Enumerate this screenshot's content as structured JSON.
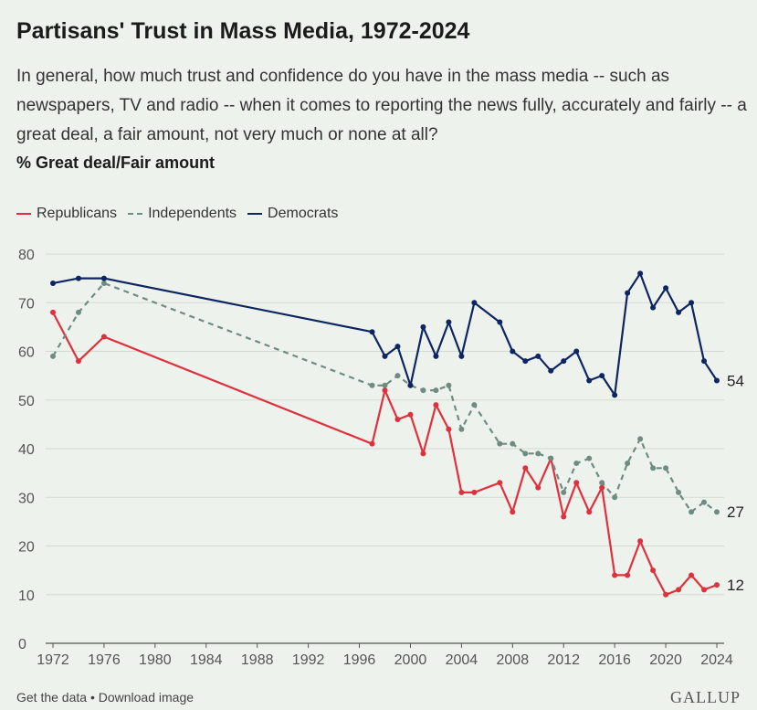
{
  "title": "Partisans' Trust in Mass Media, 1972-2024",
  "subtitle": "In general, how much trust and confidence do you have in the mass media -- such as newspapers, TV and radio -- when it comes to reporting the news fully, accurately and fairly -- a great deal, a fair amount, not very much or none at all?",
  "unit_label": "% Great deal/Fair amount",
  "footer": {
    "links": "Get the data • Download image",
    "brand": "GALLUP"
  },
  "chart_data": {
    "type": "line",
    "xlim": [
      1972,
      2024
    ],
    "ylim": [
      0,
      80
    ],
    "x_ticks": [
      1972,
      1976,
      1980,
      1984,
      1988,
      1992,
      1996,
      2000,
      2004,
      2008,
      2012,
      2016,
      2020,
      2024
    ],
    "y_ticks": [
      0,
      10,
      20,
      30,
      40,
      50,
      60,
      70,
      80
    ],
    "grid": true,
    "legend_position": "top-left",
    "series": [
      {
        "name": "Republicans",
        "color": "#e0303d",
        "style": "solid",
        "end_label": "12",
        "points": [
          [
            1972,
            68
          ],
          [
            1974,
            58
          ],
          [
            1976,
            63
          ],
          [
            1997,
            41
          ],
          [
            1998,
            52
          ],
          [
            1999,
            46
          ],
          [
            2000,
            47
          ],
          [
            2001,
            39
          ],
          [
            2002,
            49
          ],
          [
            2003,
            44
          ],
          [
            2004,
            31
          ],
          [
            2005,
            31
          ],
          [
            2007,
            33
          ],
          [
            2008,
            27
          ],
          [
            2009,
            36
          ],
          [
            2010,
            32
          ],
          [
            2011,
            38
          ],
          [
            2012,
            26
          ],
          [
            2013,
            33
          ],
          [
            2014,
            27
          ],
          [
            2015,
            32
          ],
          [
            2016,
            14
          ],
          [
            2017,
            14
          ],
          [
            2018,
            21
          ],
          [
            2019,
            15
          ],
          [
            2020,
            10
          ],
          [
            2021,
            11
          ],
          [
            2022,
            14
          ],
          [
            2023,
            11
          ],
          [
            2024,
            12
          ]
        ]
      },
      {
        "name": "Independents",
        "color": "#6e8c82",
        "style": "dashed",
        "end_label": "27",
        "points": [
          [
            1972,
            59
          ],
          [
            1974,
            68
          ],
          [
            1976,
            74
          ],
          [
            1997,
            53
          ],
          [
            1998,
            53
          ],
          [
            1999,
            55
          ],
          [
            2000,
            53
          ],
          [
            2001,
            52
          ],
          [
            2002,
            52
          ],
          [
            2003,
            53
          ],
          [
            2004,
            44
          ],
          [
            2005,
            49
          ],
          [
            2007,
            41
          ],
          [
            2008,
            41
          ],
          [
            2009,
            39
          ],
          [
            2010,
            39
          ],
          [
            2011,
            38
          ],
          [
            2012,
            31
          ],
          [
            2013,
            37
          ],
          [
            2014,
            38
          ],
          [
            2015,
            33
          ],
          [
            2016,
            30
          ],
          [
            2017,
            37
          ],
          [
            2018,
            42
          ],
          [
            2019,
            36
          ],
          [
            2020,
            36
          ],
          [
            2021,
            31
          ],
          [
            2022,
            27
          ],
          [
            2023,
            29
          ],
          [
            2024,
            27
          ]
        ]
      },
      {
        "name": "Democrats",
        "color": "#0d2562",
        "style": "solid",
        "end_label": "54",
        "points": [
          [
            1972,
            74
          ],
          [
            1974,
            75
          ],
          [
            1976,
            75
          ],
          [
            1997,
            64
          ],
          [
            1998,
            59
          ],
          [
            1999,
            61
          ],
          [
            2000,
            53
          ],
          [
            2001,
            65
          ],
          [
            2002,
            59
          ],
          [
            2003,
            66
          ],
          [
            2004,
            59
          ],
          [
            2005,
            70
          ],
          [
            2007,
            66
          ],
          [
            2008,
            60
          ],
          [
            2009,
            58
          ],
          [
            2010,
            59
          ],
          [
            2011,
            56
          ],
          [
            2012,
            58
          ],
          [
            2013,
            60
          ],
          [
            2014,
            54
          ],
          [
            2015,
            55
          ],
          [
            2016,
            51
          ],
          [
            2017,
            72
          ],
          [
            2018,
            76
          ],
          [
            2019,
            69
          ],
          [
            2020,
            73
          ],
          [
            2021,
            68
          ],
          [
            2022,
            70
          ],
          [
            2023,
            58
          ],
          [
            2024,
            54
          ]
        ]
      }
    ]
  }
}
